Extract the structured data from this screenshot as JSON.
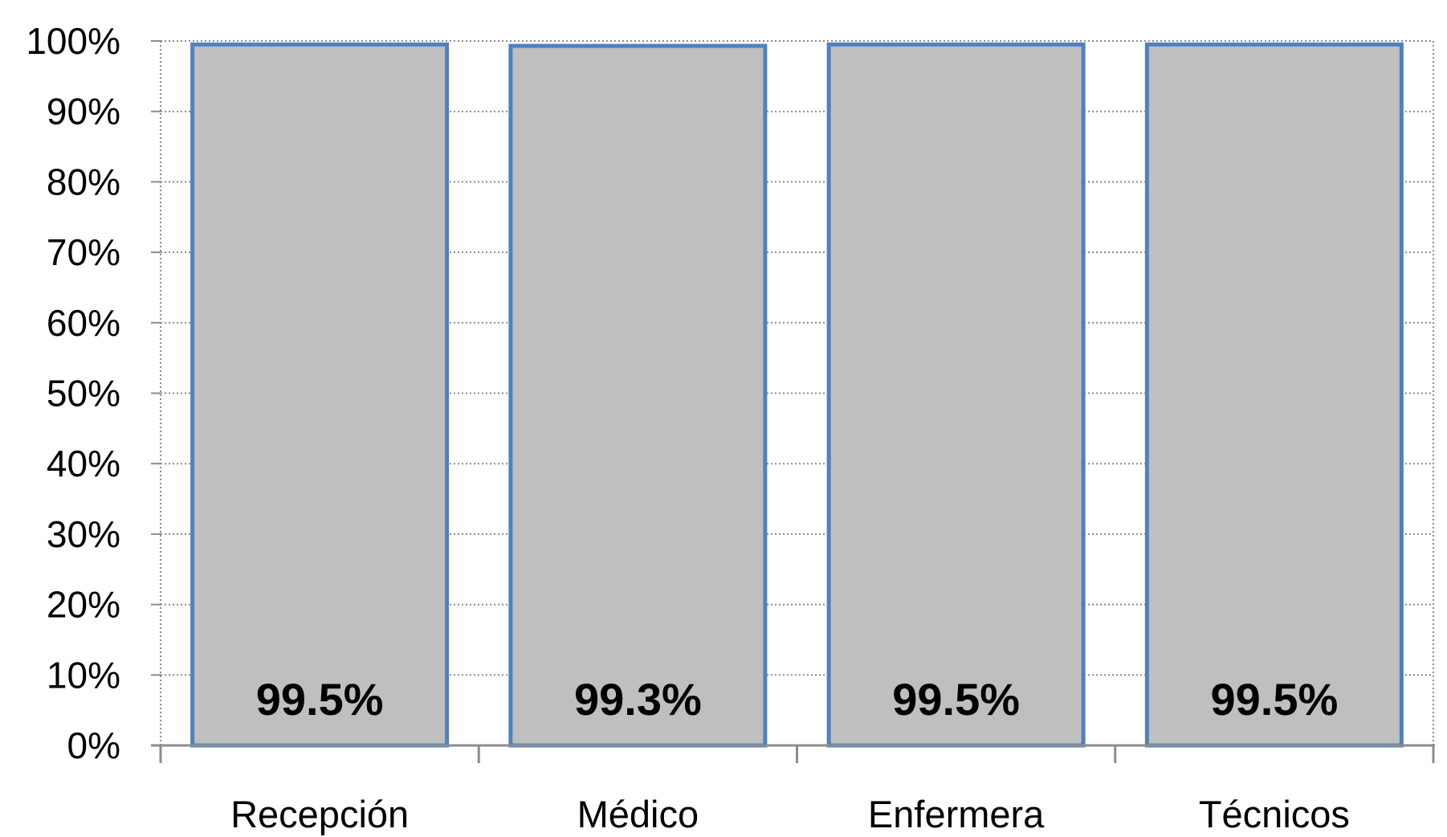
{
  "chart_data": {
    "type": "bar",
    "title": "",
    "xlabel": "",
    "ylabel": "",
    "categories": [
      "Recepción",
      "Médico",
      "Enfermera",
      "Técnicos"
    ],
    "values": [
      99.5,
      99.3,
      99.5,
      99.5
    ],
    "data_labels": [
      "99.5%",
      "99.3%",
      "99.5%",
      "99.5%"
    ],
    "ylim": [
      0,
      100
    ],
    "yticks": [
      0,
      10,
      20,
      30,
      40,
      50,
      60,
      70,
      80,
      90,
      100
    ],
    "ytick_labels": [
      "0%",
      "10%",
      "20%",
      "30%",
      "40%",
      "50%",
      "60%",
      "70%",
      "80%",
      "90%",
      "100%"
    ],
    "grid": true,
    "legend": "none",
    "colors": {
      "bar_fill": "#bfbfbf",
      "bar_stroke": "#4f81bd",
      "grid": "#8c8c8c",
      "axis": "#8c8c8c"
    }
  }
}
